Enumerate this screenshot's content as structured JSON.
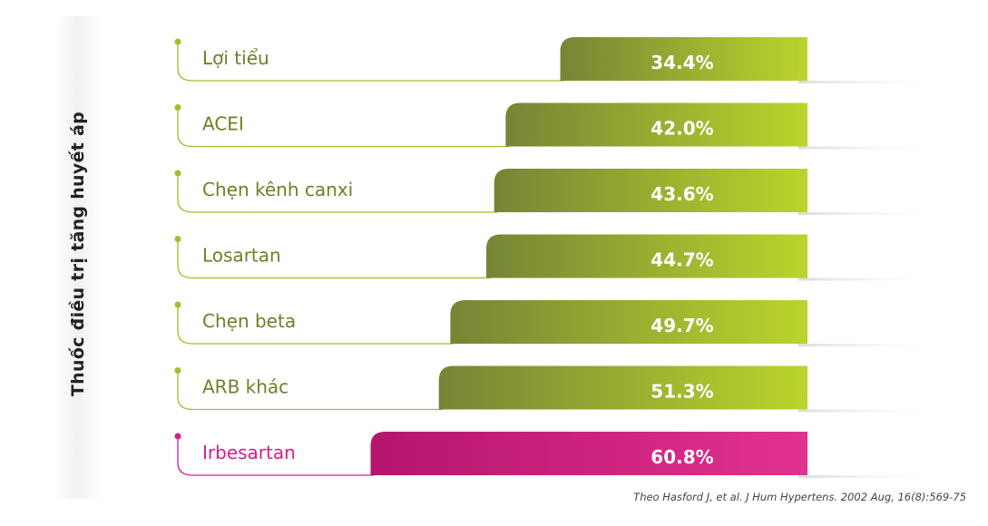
{
  "chart_data": {
    "type": "bar",
    "orientation": "horizontal",
    "ylabel": "Thuốc điều trị tăng huyết áp",
    "categories": [
      "Lợi tiểu",
      "ACEI",
      "Chẹn kênh canxi",
      "Losartan",
      "Chẹn beta",
      "ARB khác",
      "Irbesartan"
    ],
    "values": [
      34.4,
      42.0,
      43.6,
      44.7,
      49.7,
      51.3,
      60.8
    ],
    "value_labels": [
      "34.4%",
      "42.0%",
      "43.6%",
      "44.7%",
      "49.7%",
      "51.3%",
      "60.8%"
    ],
    "highlight_index": 6,
    "grid": false,
    "legend": "none"
  },
  "colors": {
    "green_dark": "#758536",
    "green_light": "#bcd42c",
    "green_text": "#6f7f26",
    "green_dot": "#9cc12a",
    "pink_dark": "#b5156d",
    "pink_light": "#e2318f",
    "pink_text": "#d3208a"
  },
  "source": "Theo Hasford J, et al. J Hum Hypertens. 2002 Aug, 16(8):569-75"
}
